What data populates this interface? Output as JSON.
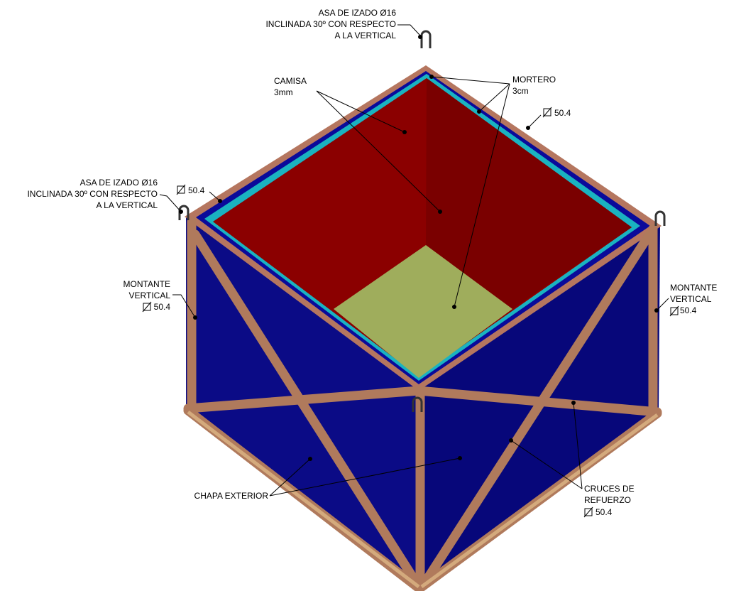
{
  "labels": {
    "lifting_top": {
      "lines": [
        "ASA DE IZADO Ø16",
        "INCLINADA 30º CON RESPECTO",
        "A LA VERTICAL"
      ]
    },
    "lifting_left": {
      "lines": [
        "ASA DE IZADO Ø16",
        "INCLINADA 30º CON RESPECTO",
        "A LA VERTICAL"
      ]
    },
    "liner": {
      "lines": [
        "CAMISA",
        "3mm"
      ]
    },
    "mortar": {
      "lines": [
        "MORTERO",
        "3cm"
      ]
    },
    "profile_top_right": {
      "lines": [
        "50.4"
      ]
    },
    "profile_top_left": {
      "lines": [
        "50.4"
      ]
    },
    "post_left": {
      "lines": [
        "MONTANTE",
        "VERTICAL",
        "50.4"
      ]
    },
    "post_right": {
      "lines": [
        "MONTANTE",
        "VERTICAL",
        "50.4"
      ]
    },
    "outer_plate": {
      "lines": [
        "CHAPA EXTERIOR"
      ]
    },
    "bracing": {
      "lines": [
        "CRUCES DE",
        "REFUERZO",
        "50.4"
      ]
    }
  }
}
